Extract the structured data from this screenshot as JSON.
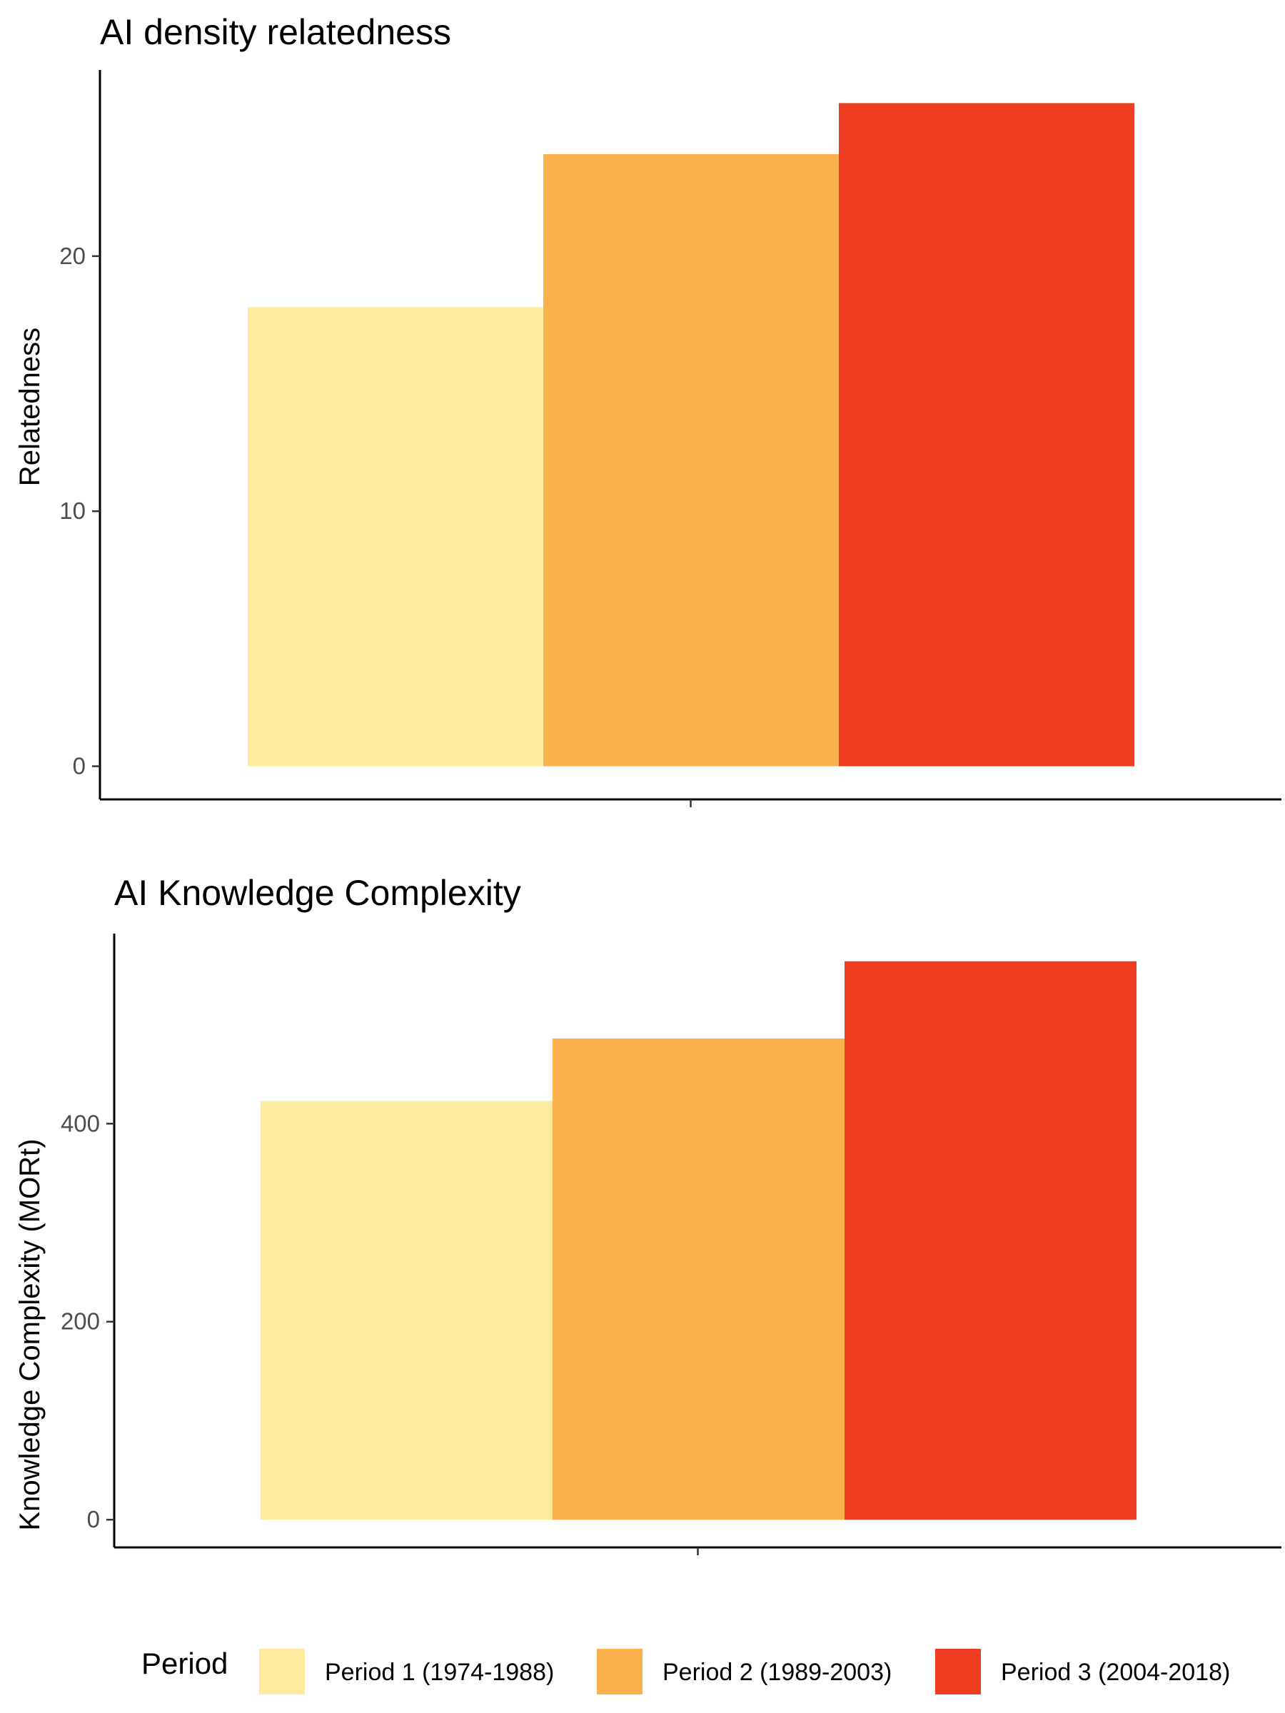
{
  "chart_data": [
    {
      "type": "bar",
      "title": "AI density relatedness",
      "xlabel": "",
      "ylabel": "Relatedness",
      "categories": [
        "Period 1 (1974-1988)",
        "Period 2 (1989-2003)",
        "Period 3 (2004-2018)"
      ],
      "values": [
        18,
        24,
        26
      ],
      "yticks": [
        0,
        10,
        20
      ],
      "ylim": [
        -1.3,
        27.3
      ],
      "grid": false
    },
    {
      "type": "bar",
      "title": "AI Knowledge Complexity",
      "xlabel": "",
      "ylabel": "Knowledge Complexity (MORt)",
      "categories": [
        "Period 1 (1974-1988)",
        "Period 2 (1989-2003)",
        "Period 3 (2004-2018)"
      ],
      "values": [
        423,
        486,
        564
      ],
      "yticks": [
        0,
        200,
        400
      ],
      "ylim": [
        -28,
        592
      ],
      "grid": false
    }
  ],
  "legend": {
    "title": "Period",
    "position": "bottom",
    "items": [
      {
        "label": "Period 1 (1974-1988)",
        "color": "#FEEBA0"
      },
      {
        "label": "Period 2 (1989-2003)",
        "color": "#FBB14E"
      },
      {
        "label": "Period 3 (2004-2018)",
        "color": "#EF3D22"
      }
    ]
  }
}
